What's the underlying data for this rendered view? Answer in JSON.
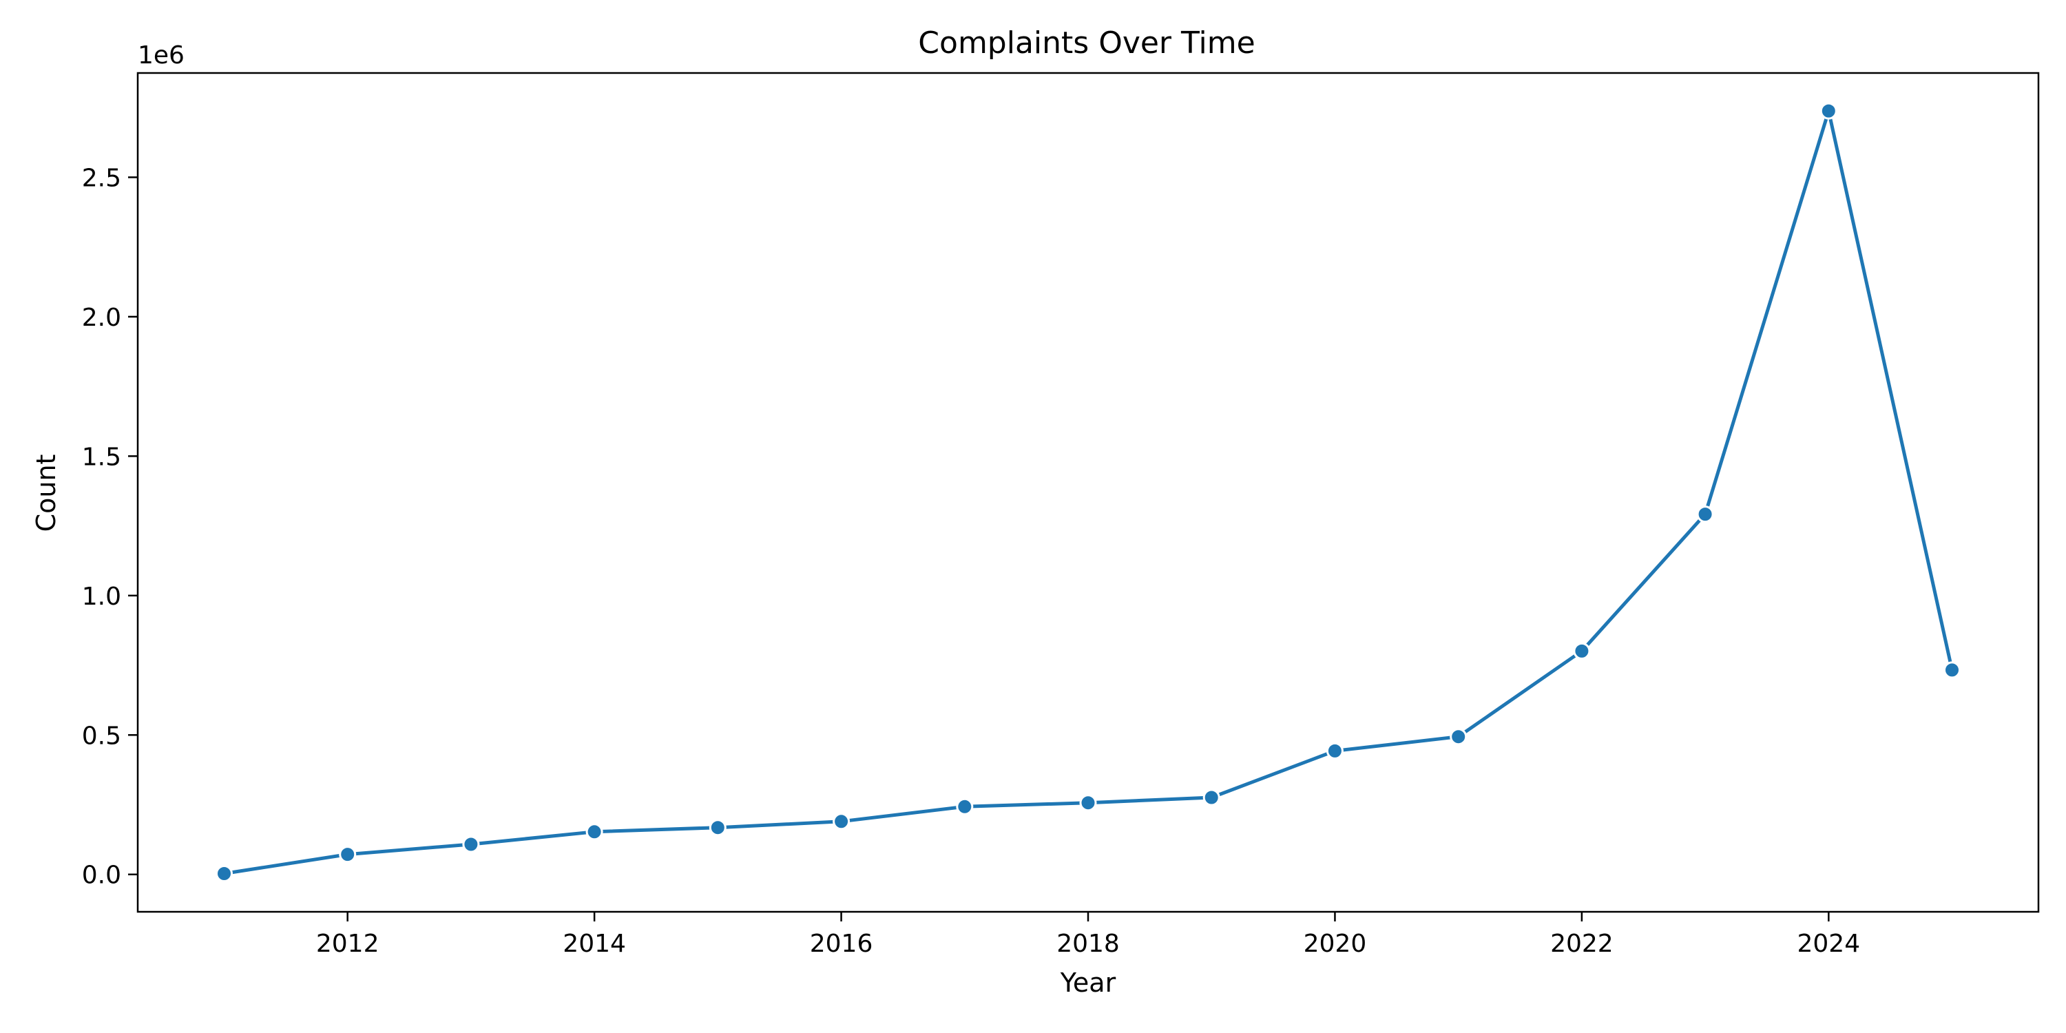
{
  "chart_data": {
    "type": "line",
    "title": "Complaints Over Time",
    "xlabel": "Year",
    "ylabel": "Count",
    "y_offset_label": "1e6",
    "x": [
      2011,
      2012,
      2013,
      2014,
      2015,
      2016,
      2017,
      2018,
      2019,
      2020,
      2021,
      2022,
      2023,
      2024,
      2025
    ],
    "series": [
      {
        "values": [
          3000,
          72000,
          108000,
          153000,
          168000,
          190000,
          243000,
          257000,
          276000,
          443000,
          494000,
          801000,
          1292000,
          2738000,
          733000
        ],
        "color": "#1f77b4"
      }
    ],
    "xlim": [
      2010.3,
      2025.7
    ],
    "ylim": [
      -0.134,
      2.874
    ],
    "x_ticks": [
      2012,
      2014,
      2016,
      2018,
      2020,
      2022,
      2024
    ],
    "x_tick_labels": [
      "2012",
      "2014",
      "2016",
      "2018",
      "2020",
      "2022",
      "2024"
    ],
    "y_ticks": [
      0.0,
      0.5,
      1.0,
      1.5,
      2.0,
      2.5
    ],
    "y_tick_labels": [
      "0.0",
      "0.5",
      "1.0",
      "1.5",
      "2.0",
      "2.5"
    ],
    "y_unit": 1000000,
    "grid": false,
    "legend": "none"
  }
}
